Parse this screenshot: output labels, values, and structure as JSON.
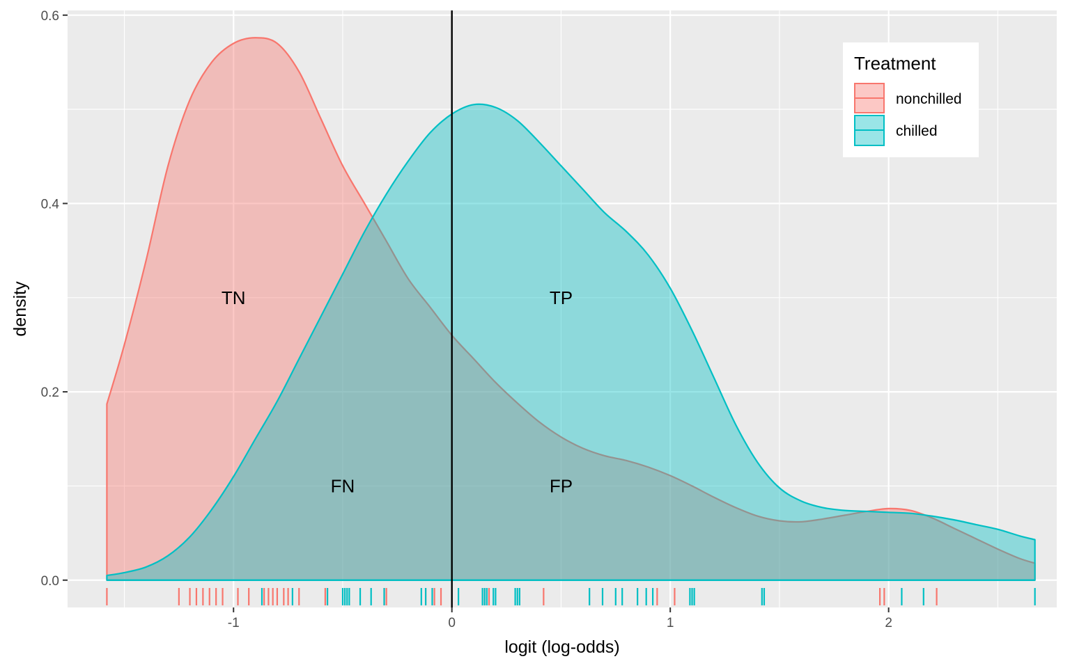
{
  "chart_data": {
    "type": "area",
    "xlabel": "logit (log-odds)",
    "ylabel": "density",
    "xlim": [
      -1.76,
      2.77
    ],
    "ylim": [
      -0.029,
      0.605
    ],
    "x_ticks": [
      {
        "value": -1,
        "label": "-1"
      },
      {
        "value": 0,
        "label": "0"
      },
      {
        "value": 1,
        "label": "1"
      },
      {
        "value": 2,
        "label": "2"
      }
    ],
    "y_ticks": [
      {
        "value": 0.0,
        "label": "0.0"
      },
      {
        "value": 0.2,
        "label": "0.2"
      },
      {
        "value": 0.4,
        "label": "0.4"
      },
      {
        "value": 0.6,
        "label": "0.6"
      }
    ],
    "grid": true,
    "legend": {
      "title": "Treatment",
      "position": "top-right",
      "entries": [
        "nonchilled",
        "chilled"
      ]
    },
    "vline": {
      "x": 0
    },
    "series": [
      {
        "name": "nonchilled",
        "color": "#F8766D",
        "fill_opacity": 0.4,
        "density": [
          [
            -1.58,
            0.187
          ],
          [
            -1.5,
            0.25
          ],
          [
            -1.4,
            0.34
          ],
          [
            -1.3,
            0.44
          ],
          [
            -1.2,
            0.51
          ],
          [
            -1.1,
            0.55
          ],
          [
            -1.0,
            0.57
          ],
          [
            -0.9,
            0.576
          ],
          [
            -0.8,
            0.57
          ],
          [
            -0.7,
            0.54
          ],
          [
            -0.6,
            0.49
          ],
          [
            -0.5,
            0.44
          ],
          [
            -0.4,
            0.4
          ],
          [
            -0.3,
            0.36
          ],
          [
            -0.2,
            0.32
          ],
          [
            -0.1,
            0.29
          ],
          [
            0.0,
            0.26
          ],
          [
            0.1,
            0.235
          ],
          [
            0.2,
            0.21
          ],
          [
            0.3,
            0.188
          ],
          [
            0.4,
            0.168
          ],
          [
            0.5,
            0.152
          ],
          [
            0.6,
            0.14
          ],
          [
            0.7,
            0.132
          ],
          [
            0.8,
            0.127
          ],
          [
            0.9,
            0.12
          ],
          [
            1.0,
            0.111
          ],
          [
            1.1,
            0.1
          ],
          [
            1.2,
            0.088
          ],
          [
            1.3,
            0.077
          ],
          [
            1.4,
            0.068
          ],
          [
            1.5,
            0.063
          ],
          [
            1.6,
            0.062
          ],
          [
            1.7,
            0.065
          ],
          [
            1.8,
            0.069
          ],
          [
            1.9,
            0.073
          ],
          [
            2.0,
            0.076
          ],
          [
            2.1,
            0.074
          ],
          [
            2.2,
            0.066
          ],
          [
            2.3,
            0.055
          ],
          [
            2.4,
            0.044
          ],
          [
            2.5,
            0.033
          ],
          [
            2.6,
            0.023
          ],
          [
            2.67,
            0.018
          ]
        ],
        "rug": [
          -1.58,
          -1.25,
          -1.2,
          -1.17,
          -1.14,
          -1.11,
          -1.08,
          -1.05,
          -0.98,
          -0.93,
          -0.86,
          -0.84,
          -0.82,
          -0.8,
          -0.77,
          -0.75,
          -0.7,
          -0.58,
          -0.57,
          -0.31,
          -0.3,
          -0.12,
          -0.08,
          -0.05,
          0.15,
          0.17,
          0.42,
          0.94,
          1.02,
          1.96,
          1.98,
          2.22
        ]
      },
      {
        "name": "chilled",
        "color": "#00BFC4",
        "fill_opacity": 0.4,
        "density": [
          [
            -1.58,
            0.005
          ],
          [
            -1.5,
            0.008
          ],
          [
            -1.4,
            0.014
          ],
          [
            -1.3,
            0.026
          ],
          [
            -1.2,
            0.046
          ],
          [
            -1.1,
            0.075
          ],
          [
            -1.0,
            0.11
          ],
          [
            -0.9,
            0.15
          ],
          [
            -0.8,
            0.19
          ],
          [
            -0.7,
            0.235
          ],
          [
            -0.6,
            0.28
          ],
          [
            -0.5,
            0.325
          ],
          [
            -0.4,
            0.37
          ],
          [
            -0.3,
            0.41
          ],
          [
            -0.2,
            0.445
          ],
          [
            -0.1,
            0.475
          ],
          [
            0.0,
            0.495
          ],
          [
            0.1,
            0.505
          ],
          [
            0.2,
            0.502
          ],
          [
            0.3,
            0.488
          ],
          [
            0.4,
            0.465
          ],
          [
            0.5,
            0.44
          ],
          [
            0.6,
            0.415
          ],
          [
            0.7,
            0.39
          ],
          [
            0.8,
            0.37
          ],
          [
            0.9,
            0.345
          ],
          [
            1.0,
            0.31
          ],
          [
            1.1,
            0.265
          ],
          [
            1.2,
            0.215
          ],
          [
            1.3,
            0.165
          ],
          [
            1.4,
            0.125
          ],
          [
            1.5,
            0.098
          ],
          [
            1.6,
            0.084
          ],
          [
            1.7,
            0.077
          ],
          [
            1.8,
            0.074
          ],
          [
            1.9,
            0.073
          ],
          [
            2.0,
            0.072
          ],
          [
            2.1,
            0.071
          ],
          [
            2.2,
            0.068
          ],
          [
            2.3,
            0.064
          ],
          [
            2.4,
            0.059
          ],
          [
            2.5,
            0.054
          ],
          [
            2.6,
            0.047
          ],
          [
            2.67,
            0.043
          ]
        ],
        "rug": [
          -0.87,
          -0.73,
          -0.57,
          -0.5,
          -0.49,
          -0.48,
          -0.47,
          -0.42,
          -0.37,
          -0.31,
          -0.14,
          -0.12,
          -0.09,
          0.03,
          0.14,
          0.15,
          0.16,
          0.19,
          0.2,
          0.29,
          0.3,
          0.31,
          0.63,
          0.69,
          0.75,
          0.78,
          0.85,
          0.89,
          0.92,
          1.09,
          1.1,
          1.11,
          1.42,
          1.43,
          2.06,
          2.16,
          2.67
        ]
      }
    ],
    "annotations": [
      {
        "text": "TN",
        "x": -1.0,
        "y": 0.3
      },
      {
        "text": "TP",
        "x": 0.5,
        "y": 0.3
      },
      {
        "text": "FN",
        "x": -0.5,
        "y": 0.1
      },
      {
        "text": "FP",
        "x": 0.5,
        "y": 0.1
      }
    ]
  }
}
